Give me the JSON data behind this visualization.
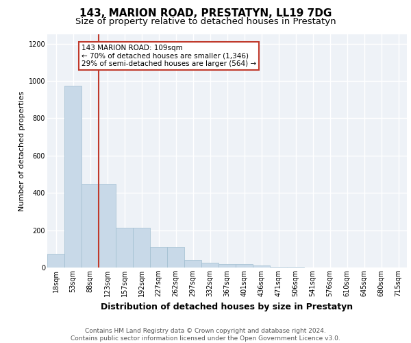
{
  "title": "143, MARION ROAD, PRESTATYN, LL19 7DG",
  "subtitle": "Size of property relative to detached houses in Prestatyn",
  "xlabel": "Distribution of detached houses by size in Prestatyn",
  "ylabel": "Number of detached properties",
  "categories": [
    "18sqm",
    "53sqm",
    "88sqm",
    "123sqm",
    "157sqm",
    "192sqm",
    "227sqm",
    "262sqm",
    "297sqm",
    "332sqm",
    "367sqm",
    "401sqm",
    "436sqm",
    "471sqm",
    "506sqm",
    "541sqm",
    "576sqm",
    "610sqm",
    "645sqm",
    "680sqm",
    "715sqm"
  ],
  "values": [
    75,
    975,
    450,
    450,
    215,
    215,
    110,
    110,
    40,
    25,
    20,
    20,
    10,
    5,
    5,
    0,
    0,
    0,
    0,
    0,
    0
  ],
  "bar_color": "#c8d9e8",
  "bar_edge_color": "#a0bdd0",
  "vline_color": "#c0392b",
  "ylim": [
    0,
    1250
  ],
  "yticks": [
    0,
    200,
    400,
    600,
    800,
    1000,
    1200
  ],
  "annotation_text": "143 MARION ROAD: 109sqm\n← 70% of detached houses are smaller (1,346)\n29% of semi-detached houses are larger (564) →",
  "annotation_box_edge_color": "#c0392b",
  "footer_text": "Contains HM Land Registry data © Crown copyright and database right 2024.\nContains public sector information licensed under the Open Government Licence v3.0.",
  "bg_color": "#eef2f7",
  "grid_color": "white",
  "title_fontsize": 11,
  "subtitle_fontsize": 9.5,
  "xlabel_fontsize": 9,
  "ylabel_fontsize": 8,
  "tick_fontsize": 7,
  "footer_fontsize": 6.5,
  "annotation_fontsize": 7.5
}
